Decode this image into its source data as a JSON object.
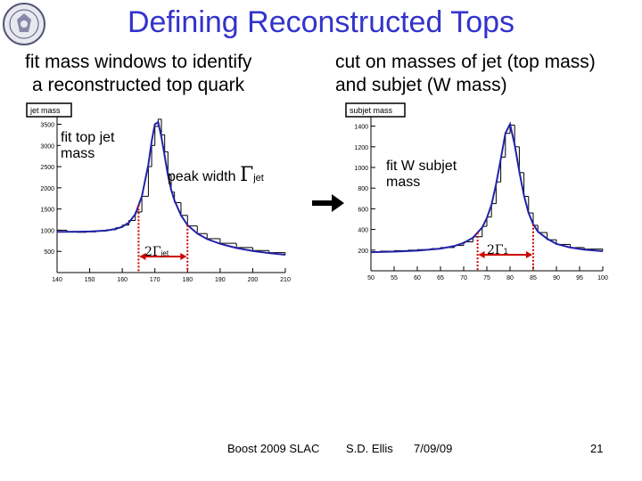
{
  "slide": {
    "title": "Defining Reconstructed Tops",
    "left_caption": [
      "fit mass windows to identify",
      "a reconstructed top quark"
    ],
    "right_caption": [
      "cut on masses of jet (top mass)",
      "and subjet (W mass)"
    ],
    "footer": {
      "event": "Boost 2009  SLAC",
      "author": "S.D. Ellis",
      "date": "7/09/09",
      "page": "21"
    },
    "colors": {
      "title": "#3333cc",
      "fit": "#2222aa",
      "marker": "#cc0000",
      "hist": "#000000"
    },
    "icons": [
      "university-seal-icon",
      "right-arrow-icon"
    ]
  },
  "chart_data": [
    {
      "type": "line",
      "title": "jet mass",
      "xlim": [
        140,
        210
      ],
      "ylim": [
        0,
        3700
      ],
      "x_ticks": [
        140,
        150,
        160,
        170,
        180,
        190,
        200,
        210
      ],
      "y_ticks": [
        500,
        1000,
        1500,
        2000,
        2500,
        3000,
        3500
      ],
      "series": [
        {
          "name": "histogram",
          "x": [
            140,
            143,
            146,
            149,
            152,
            155,
            158,
            160,
            162,
            164,
            166,
            168,
            169,
            170,
            171,
            172,
            173,
            174,
            175,
            176,
            178,
            180,
            183,
            186,
            190,
            195,
            200,
            205,
            210
          ],
          "values": [
            1000,
            970,
            950,
            960,
            980,
            1010,
            1060,
            1120,
            1230,
            1430,
            1800,
            2500,
            3000,
            3450,
            3620,
            3250,
            2850,
            2300,
            1900,
            1650,
            1350,
            1100,
            920,
            800,
            690,
            590,
            520,
            470,
            430
          ]
        },
        {
          "name": "fit",
          "x": [
            140,
            145,
            150,
            155,
            158,
            160,
            162,
            164,
            166,
            168,
            169,
            170,
            171,
            172,
            173,
            174,
            175,
            176,
            178,
            180,
            183,
            186,
            190,
            195,
            200,
            205,
            210
          ],
          "values": [
            960,
            960,
            970,
            990,
            1030,
            1080,
            1180,
            1380,
            1800,
            2550,
            3100,
            3500,
            3550,
            3200,
            2750,
            2300,
            1950,
            1700,
            1350,
            1120,
            920,
            790,
            680,
            580,
            510,
            460,
            420
          ]
        }
      ],
      "annotations": {
        "box_label": "fit top jet mass",
        "peak_label": "peak width",
        "peak_symbol": "Γ",
        "peak_sub": "jet",
        "window_label": "2Γ",
        "window_sub": "jet",
        "window": [
          165,
          180
        ]
      }
    },
    {
      "type": "line",
      "title": "subjet mass",
      "xlim": [
        50,
        100
      ],
      "ylim": [
        0,
        1500
      ],
      "x_ticks": [
        50,
        55,
        60,
        65,
        70,
        75,
        80,
        85,
        90,
        95,
        100
      ],
      "y_ticks": [
        200,
        400,
        600,
        800,
        1000,
        1200,
        1400
      ],
      "series": [
        {
          "name": "histogram",
          "x": [
            50,
            52,
            55,
            58,
            60,
            63,
            65,
            68,
            70,
            72,
            74,
            75,
            76,
            77,
            78,
            79,
            80,
            81,
            82,
            83,
            84,
            85,
            86,
            88,
            90,
            93,
            96,
            100
          ],
          "values": [
            185,
            190,
            195,
            200,
            205,
            215,
            225,
            245,
            280,
            330,
            430,
            520,
            650,
            860,
            1100,
            1330,
            1410,
            1200,
            950,
            720,
            560,
            440,
            370,
            300,
            255,
            225,
            210,
            195
          ]
        },
        {
          "name": "fit",
          "x": [
            50,
            55,
            60,
            65,
            68,
            70,
            72,
            74,
            75,
            76,
            77,
            78,
            79,
            80,
            81,
            82,
            83,
            84,
            85,
            86,
            88,
            90,
            93,
            96,
            100
          ],
          "values": [
            180,
            185,
            195,
            215,
            240,
            270,
            320,
            420,
            510,
            640,
            840,
            1080,
            1330,
            1420,
            1220,
            960,
            730,
            560,
            450,
            380,
            310,
            260,
            225,
            205,
            190
          ]
        }
      ],
      "annotations": {
        "box_label": "fit W subjet mass",
        "window_label": "2Γ",
        "window_sub": "1",
        "window": [
          73,
          85
        ]
      }
    }
  ]
}
